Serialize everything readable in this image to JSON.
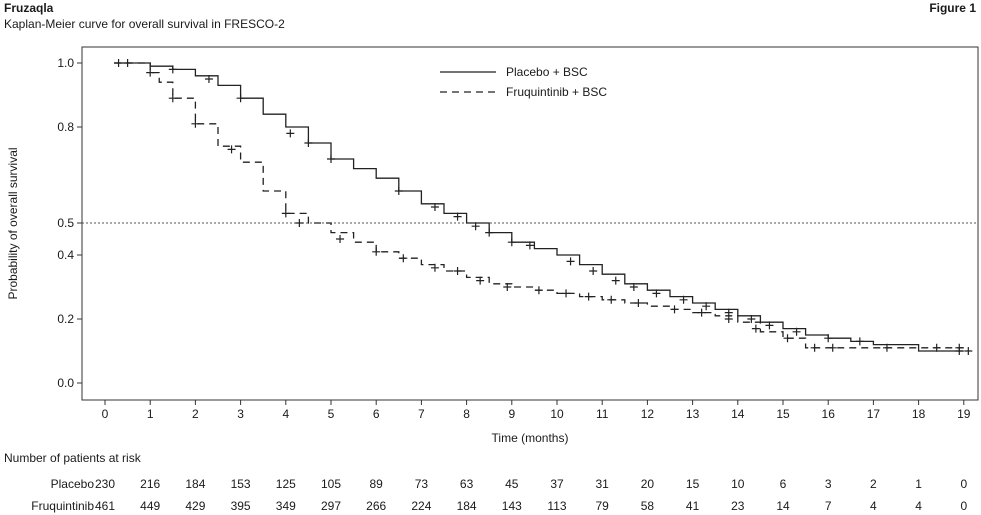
{
  "header": {
    "brand": "Fruzaqla",
    "figure_label": "Figure 1",
    "subtitle": "Kaplan-Meier curve for overall survival in FRESCO-2"
  },
  "chart_data": {
    "type": "line",
    "title": "Kaplan-Meier curve for overall survival in FRESCO-2",
    "xlabel": "Time (months)",
    "ylabel": "Probability of overall survival",
    "xlim": [
      0,
      19
    ],
    "ylim": [
      0,
      1
    ],
    "x_ticks": [
      0,
      1,
      2,
      3,
      4,
      5,
      6,
      7,
      8,
      9,
      10,
      11,
      12,
      13,
      14,
      15,
      16,
      17,
      18,
      19
    ],
    "y_ticks": [
      0.0,
      0.2,
      0.4,
      0.5,
      0.8,
      1.0
    ],
    "y_tick_labels": [
      "0.0",
      "0.2",
      "0.4",
      "0.5",
      "0.8",
      "1.0"
    ],
    "reference_line_y": 0.5,
    "legend_position": "top-center",
    "series": [
      {
        "name": "Placebo + BSC",
        "style": "solid",
        "points": [
          [
            0.2,
            1.0
          ],
          [
            0.5,
            1.0
          ],
          [
            1.0,
            0.99
          ],
          [
            1.5,
            0.98
          ],
          [
            2.0,
            0.96
          ],
          [
            2.5,
            0.93
          ],
          [
            3.0,
            0.89
          ],
          [
            3.5,
            0.84
          ],
          [
            4.0,
            0.8
          ],
          [
            4.5,
            0.75
          ],
          [
            5.0,
            0.7
          ],
          [
            5.5,
            0.67
          ],
          [
            6.0,
            0.64
          ],
          [
            6.5,
            0.6
          ],
          [
            7.0,
            0.56
          ],
          [
            7.5,
            0.53
          ],
          [
            8.0,
            0.5
          ],
          [
            8.5,
            0.47
          ],
          [
            9.0,
            0.44
          ],
          [
            9.5,
            0.42
          ],
          [
            10.0,
            0.4
          ],
          [
            10.5,
            0.37
          ],
          [
            11.0,
            0.34
          ],
          [
            11.5,
            0.31
          ],
          [
            12.0,
            0.29
          ],
          [
            12.5,
            0.27
          ],
          [
            13.0,
            0.25
          ],
          [
            13.5,
            0.23
          ],
          [
            14.0,
            0.21
          ],
          [
            14.5,
            0.19
          ],
          [
            15.0,
            0.17
          ],
          [
            15.5,
            0.15
          ],
          [
            16.0,
            0.14
          ],
          [
            16.5,
            0.13
          ],
          [
            17.0,
            0.12
          ],
          [
            18.0,
            0.1
          ],
          [
            19.0,
            0.1
          ]
        ],
        "censor_marks": [
          [
            0.3,
            1.0
          ],
          [
            1.5,
            0.98
          ],
          [
            2.3,
            0.95
          ],
          [
            3.0,
            0.89
          ],
          [
            4.1,
            0.78
          ],
          [
            4.5,
            0.75
          ],
          [
            5.0,
            0.7
          ],
          [
            6.5,
            0.6
          ],
          [
            7.3,
            0.55
          ],
          [
            7.8,
            0.52
          ],
          [
            8.2,
            0.49
          ],
          [
            8.5,
            0.47
          ],
          [
            9.0,
            0.44
          ],
          [
            9.4,
            0.43
          ],
          [
            10.3,
            0.38
          ],
          [
            10.8,
            0.35
          ],
          [
            11.3,
            0.32
          ],
          [
            11.7,
            0.3
          ],
          [
            12.2,
            0.28
          ],
          [
            12.8,
            0.26
          ],
          [
            13.3,
            0.24
          ],
          [
            13.8,
            0.22
          ],
          [
            14.3,
            0.2
          ],
          [
            14.7,
            0.18
          ],
          [
            15.3,
            0.16
          ],
          [
            16.0,
            0.14
          ],
          [
            16.7,
            0.13
          ],
          [
            18.9,
            0.1
          ],
          [
            19.1,
            0.1
          ]
        ]
      },
      {
        "name": "Fruquintinib + BSC",
        "style": "dashed",
        "points": [
          [
            0.2,
            1.0
          ],
          [
            0.5,
            1.0
          ],
          [
            1.0,
            0.97
          ],
          [
            1.2,
            0.94
          ],
          [
            1.5,
            0.89
          ],
          [
            2.0,
            0.81
          ],
          [
            2.5,
            0.74
          ],
          [
            3.0,
            0.69
          ],
          [
            3.5,
            0.6
          ],
          [
            4.0,
            0.53
          ],
          [
            4.5,
            0.5
          ],
          [
            5.0,
            0.47
          ],
          [
            5.5,
            0.44
          ],
          [
            6.0,
            0.41
          ],
          [
            6.5,
            0.39
          ],
          [
            7.0,
            0.37
          ],
          [
            7.5,
            0.35
          ],
          [
            8.0,
            0.33
          ],
          [
            8.5,
            0.31
          ],
          [
            9.0,
            0.3
          ],
          [
            9.5,
            0.29
          ],
          [
            10.0,
            0.28
          ],
          [
            10.5,
            0.27
          ],
          [
            11.0,
            0.26
          ],
          [
            11.5,
            0.25
          ],
          [
            12.0,
            0.24
          ],
          [
            12.5,
            0.23
          ],
          [
            13.0,
            0.22
          ],
          [
            13.5,
            0.21
          ],
          [
            14.0,
            0.19
          ],
          [
            14.5,
            0.16
          ],
          [
            15.0,
            0.14
          ],
          [
            15.5,
            0.11
          ],
          [
            16.0,
            0.11
          ],
          [
            17.0,
            0.11
          ],
          [
            18.0,
            0.11
          ],
          [
            19.0,
            0.11
          ]
        ],
        "censor_marks": [
          [
            0.5,
            1.0
          ],
          [
            1.0,
            0.97
          ],
          [
            1.5,
            0.89
          ],
          [
            2.0,
            0.81
          ],
          [
            2.8,
            0.73
          ],
          [
            4.0,
            0.53
          ],
          [
            4.3,
            0.5
          ],
          [
            5.2,
            0.45
          ],
          [
            6.0,
            0.41
          ],
          [
            6.6,
            0.39
          ],
          [
            7.3,
            0.36
          ],
          [
            7.8,
            0.35
          ],
          [
            8.3,
            0.32
          ],
          [
            8.9,
            0.3
          ],
          [
            9.6,
            0.29
          ],
          [
            10.2,
            0.28
          ],
          [
            10.7,
            0.27
          ],
          [
            11.2,
            0.26
          ],
          [
            11.8,
            0.25
          ],
          [
            12.6,
            0.23
          ],
          [
            13.2,
            0.22
          ],
          [
            13.8,
            0.2
          ],
          [
            14.4,
            0.17
          ],
          [
            15.1,
            0.14
          ],
          [
            15.7,
            0.11
          ],
          [
            16.1,
            0.11
          ],
          [
            17.3,
            0.11
          ],
          [
            18.4,
            0.11
          ],
          [
            18.9,
            0.11
          ]
        ]
      }
    ]
  },
  "risk_table": {
    "title": "Number of patients at risk",
    "rows": [
      {
        "label": "Placebo",
        "values": [
          "230",
          "216",
          "184",
          "153",
          "125",
          "105",
          "89",
          "73",
          "63",
          "45",
          "37",
          "31",
          "20",
          "15",
          "10",
          "6",
          "3",
          "2",
          "1",
          "0"
        ]
      },
      {
        "label": "Fruquintinib",
        "values": [
          "461",
          "449",
          "429",
          "395",
          "349",
          "297",
          "266",
          "224",
          "184",
          "143",
          "113",
          "79",
          "58",
          "41",
          "23",
          "14",
          "7",
          "4",
          "4",
          "0"
        ]
      }
    ]
  }
}
